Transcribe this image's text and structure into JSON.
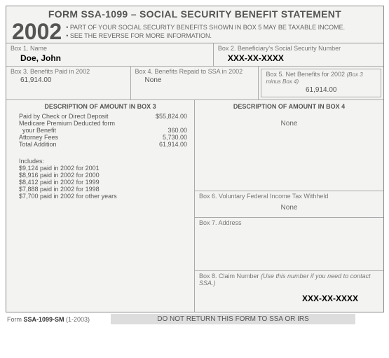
{
  "title": "FORM SSA-1099 – SOCIAL SECURITY BENEFIT STATEMENT",
  "year": "2002",
  "bullets": {
    "b1": "• PART OF YOUR SOCIAL SECURITY BENEFITS SHOWN IN BOX 5 MAY BE TAXABLE INCOME.",
    "b2": "• SEE THE REVERSE FOR MORE INFORMATION."
  },
  "box1": {
    "label": "Box 1. Name",
    "value": "Doe, John"
  },
  "box2": {
    "label": "Box 2. Beneficiary's Social Security Number",
    "value": "XXX-XX-XXXX"
  },
  "box3": {
    "label": "Box 3. Benefits Paid in 2002",
    "value": "61,914.00"
  },
  "box4": {
    "label": "Box 4. Benefits Repaid to SSA in 2002",
    "value": "None"
  },
  "box5": {
    "label": "Box 5. Net Benefits for 2002 ",
    "hint": "(Box 3 minus Box 4)",
    "value": "61,914.00"
  },
  "desc3": {
    "head": "DESCRIPTION OF AMOUNT IN BOX 3",
    "lines": [
      {
        "label": "Paid by Check or Direct Deposit",
        "value": "$55,824.00"
      },
      {
        "label": "Medicare Premium Deducted form",
        "value": ""
      },
      {
        "label": "  your Benefit",
        "value": "360.00"
      },
      {
        "label": "Attorney Fees",
        "value": "5,730.00"
      },
      {
        "label": "Total Addition",
        "value": "61,914.00"
      }
    ],
    "includes_head": "Includes:",
    "includes": [
      "$9,124 paid in 2002 for 2001",
      "$8,916 paid in 2002 for 2000",
      "$8,412 paid in 2002 for 1999",
      "$7,888 paid in 2002 for 1998",
      "$7,700 paid in 2002 for other years"
    ]
  },
  "desc4": {
    "head": "DESCRIPTION OF AMOUNT IN BOX 4",
    "value": "None"
  },
  "box6": {
    "label": "Box 6. Voluntary Federal Income Tax Withheld",
    "value": "None"
  },
  "box7": {
    "label": "Box 7. Address"
  },
  "box8": {
    "label": "Box 8. Claim Number ",
    "hint": "(Use this number if you need to contact SSA.)",
    "value": "XXX-XX-XXXX"
  },
  "footer": {
    "form_id_prefix": "Form ",
    "form_id_bold": "SSA-1099-SM",
    "form_id_suffix": " (1-2003)",
    "notice": "DO NOT RETURN THIS FORM TO SSA OR IRS"
  }
}
